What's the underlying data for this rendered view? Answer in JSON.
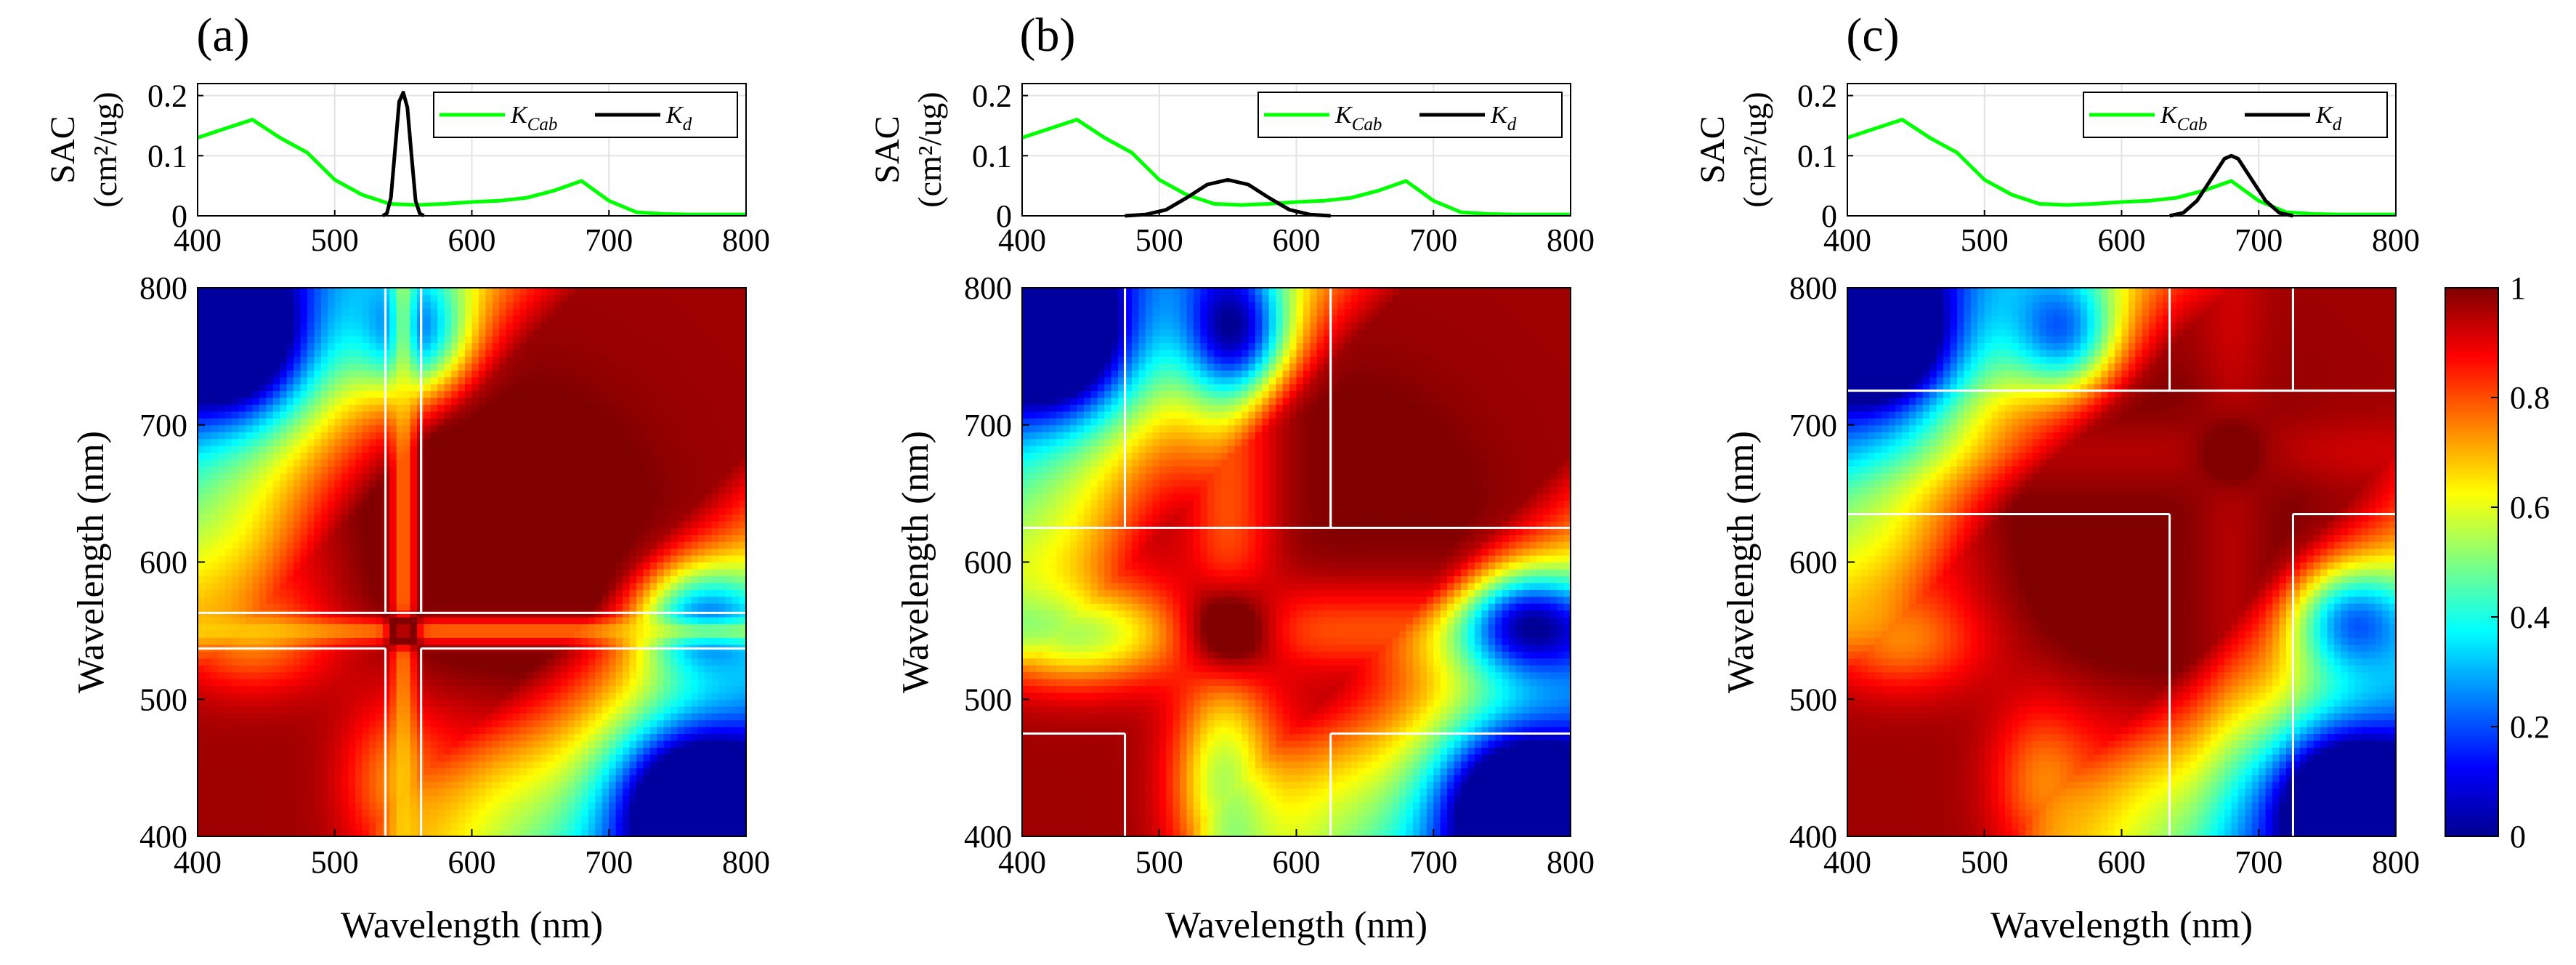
{
  "chart_data": [
    {
      "type": "heatmap",
      "panel_label": "(a)",
      "line_plot": {
        "type": "line",
        "ylabel_line1": "SAC",
        "ylabel_line2": "(cm²/ug)",
        "xlim": [
          400,
          800
        ],
        "ylim": [
          0,
          0.22
        ],
        "xticks": [
          "400",
          "500",
          "600",
          "700",
          "800"
        ],
        "yticks": [
          "0",
          "0.1",
          "0.2"
        ],
        "legend": {
          "position": "top-right",
          "entries": [
            "K_Cab",
            "K_d"
          ]
        },
        "series": [
          {
            "name": "K_Cab",
            "color": "#00ff00",
            "x": [
              400,
              420,
              440,
              460,
              480,
              500,
              520,
              540,
              560,
              580,
              600,
              620,
              640,
              660,
              680,
              700,
              720,
              740,
              760,
              780,
              800
            ],
            "y": [
              0.13,
              0.145,
              0.16,
              0.13,
              0.105,
              0.06,
              0.035,
              0.02,
              0.018,
              0.02,
              0.023,
              0.025,
              0.03,
              0.042,
              0.058,
              0.025,
              0.006,
              0.003,
              0.002,
              0.002,
              0.002
            ]
          },
          {
            "name": "K_d",
            "color": "#000000",
            "x": [
              535,
              538,
              541,
              544,
              547,
              550,
              553,
              556,
              559,
              562,
              565
            ],
            "y": [
              0.0,
              0.004,
              0.03,
              0.11,
              0.19,
              0.205,
              0.18,
              0.1,
              0.025,
              0.004,
              0.0
            ]
          }
        ]
      },
      "heatmap": {
        "xlabel": "Wavelength (nm)",
        "ylabel": "Wavelength (nm)",
        "xlim": [
          400,
          800
        ],
        "ylim": [
          400,
          800
        ],
        "xticks": [
          "400",
          "500",
          "600",
          "700",
          "800"
        ],
        "yticks": [
          "400",
          "500",
          "600",
          "700",
          "800"
        ],
        "colormap": "jet",
        "value_range": [
          0,
          1
        ],
        "white_box_bounds_nm": [
          537,
          563
        ]
      }
    },
    {
      "type": "heatmap",
      "panel_label": "(b)",
      "line_plot": {
        "type": "line",
        "ylabel_line1": "SAC",
        "ylabel_line2": "(cm²/ug)",
        "xlim": [
          400,
          800
        ],
        "ylim": [
          0,
          0.22
        ],
        "xticks": [
          "400",
          "500",
          "600",
          "700",
          "800"
        ],
        "yticks": [
          "0",
          "0.1",
          "0.2"
        ],
        "legend": {
          "position": "top-right",
          "entries": [
            "K_Cab",
            "K_d"
          ]
        },
        "series": [
          {
            "name": "K_Cab",
            "color": "#00ff00",
            "x": [
              400,
              420,
              440,
              460,
              480,
              500,
              520,
              540,
              560,
              580,
              600,
              620,
              640,
              660,
              680,
              700,
              720,
              740,
              760,
              780,
              800
            ],
            "y": [
              0.13,
              0.145,
              0.16,
              0.13,
              0.105,
              0.06,
              0.035,
              0.02,
              0.018,
              0.02,
              0.023,
              0.025,
              0.03,
              0.042,
              0.058,
              0.025,
              0.006,
              0.003,
              0.002,
              0.002,
              0.002
            ]
          },
          {
            "name": "K_d",
            "color": "#000000",
            "x": [
              475,
              490,
              505,
              520,
              535,
              550,
              565,
              580,
              595,
              610,
              625
            ],
            "y": [
              0.0,
              0.002,
              0.01,
              0.03,
              0.052,
              0.06,
              0.052,
              0.03,
              0.01,
              0.002,
              0.0
            ]
          }
        ]
      },
      "heatmap": {
        "xlabel": "Wavelength (nm)",
        "ylabel": "Wavelength (nm)",
        "xlim": [
          400,
          800
        ],
        "ylim": [
          400,
          800
        ],
        "xticks": [
          "400",
          "500",
          "600",
          "700",
          "800"
        ],
        "yticks": [
          "400",
          "500",
          "600",
          "700",
          "800"
        ],
        "colormap": "jet",
        "value_range": [
          0,
          1
        ],
        "white_box_bounds_nm": [
          475,
          625
        ]
      }
    },
    {
      "type": "heatmap",
      "panel_label": "(c)",
      "line_plot": {
        "type": "line",
        "ylabel_line1": "SAC",
        "ylabel_line2": "(cm²/ug)",
        "xlim": [
          400,
          800
        ],
        "ylim": [
          0,
          0.22
        ],
        "xticks": [
          "400",
          "500",
          "600",
          "700",
          "800"
        ],
        "yticks": [
          "0",
          "0.1",
          "0.2"
        ],
        "legend": {
          "position": "top-right",
          "entries": [
            "K_Cab",
            "K_d"
          ]
        },
        "series": [
          {
            "name": "K_Cab",
            "color": "#00ff00",
            "x": [
              400,
              420,
              440,
              460,
              480,
              500,
              520,
              540,
              560,
              580,
              600,
              620,
              640,
              660,
              680,
              700,
              720,
              740,
              760,
              780,
              800
            ],
            "y": [
              0.13,
              0.145,
              0.16,
              0.13,
              0.105,
              0.06,
              0.035,
              0.02,
              0.018,
              0.02,
              0.023,
              0.025,
              0.03,
              0.042,
              0.058,
              0.025,
              0.006,
              0.003,
              0.002,
              0.002,
              0.002
            ]
          },
          {
            "name": "K_d",
            "color": "#000000",
            "x": [
              635,
              645,
              655,
              665,
              675,
              680,
              685,
              695,
              705,
              715,
              725
            ],
            "y": [
              0.0,
              0.005,
              0.025,
              0.06,
              0.095,
              0.1,
              0.095,
              0.06,
              0.025,
              0.005,
              0.0
            ]
          }
        ]
      },
      "heatmap": {
        "xlabel": "Wavelength (nm)",
        "ylabel": "Wavelength (nm)",
        "xlim": [
          400,
          800
        ],
        "ylim": [
          400,
          800
        ],
        "xticks": [
          "400",
          "500",
          "600",
          "700",
          "800"
        ],
        "yticks": [
          "400",
          "500",
          "600",
          "700",
          "800"
        ],
        "colormap": "jet",
        "value_range": [
          0,
          1
        ],
        "white_box_bounds_nm": [
          635,
          725
        ]
      }
    }
  ],
  "colorbar": {
    "range": [
      0,
      1
    ],
    "ticks": [
      "0",
      "0.2",
      "0.4",
      "0.6",
      "0.8",
      "1"
    ]
  }
}
